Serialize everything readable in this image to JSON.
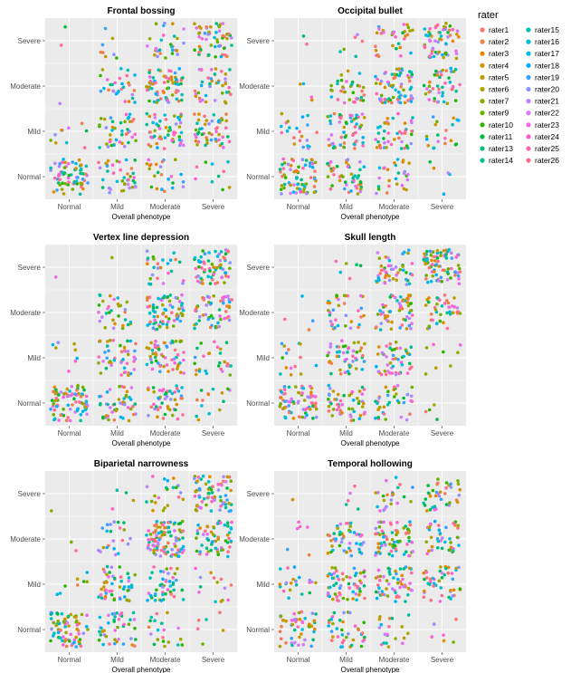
{
  "chart_data": {
    "type": "scatter",
    "jitter": true,
    "grid": true,
    "legend_placement": "right",
    "xlabel": "Overall phenotype",
    "x_categories": [
      "Normal",
      "Mild",
      "Moderate",
      "Severe"
    ],
    "y_categories": [
      "Normal",
      "Mild",
      "Moderate",
      "Severe"
    ],
    "legend": {
      "title": "rater",
      "entries": [
        {
          "name": "rater1",
          "color": "#F8766D"
        },
        {
          "name": "rater2",
          "color": "#EF7F49"
        },
        {
          "name": "rater3",
          "color": "#E38900"
        },
        {
          "name": "rater4",
          "color": "#D39200"
        },
        {
          "name": "rater5",
          "color": "#C09B00"
        },
        {
          "name": "rater6",
          "color": "#A9A400"
        },
        {
          "name": "rater7",
          "color": "#8EAB00"
        },
        {
          "name": "rater9",
          "color": "#6BB100"
        },
        {
          "name": "rater10",
          "color": "#2BB600"
        },
        {
          "name": "rater11",
          "color": "#00BA42"
        },
        {
          "name": "rater13",
          "color": "#00BD73"
        },
        {
          "name": "rater14",
          "color": "#00BF98"
        },
        {
          "name": "rater15",
          "color": "#00C0B8"
        },
        {
          "name": "rater16",
          "color": "#00BED5"
        },
        {
          "name": "rater17",
          "color": "#00B9EC"
        },
        {
          "name": "rater18",
          "color": "#00B0F6"
        },
        {
          "name": "rater19",
          "color": "#35A2FF"
        },
        {
          "name": "rater20",
          "color": "#8F91FF"
        },
        {
          "name": "rater21",
          "color": "#B983FF"
        },
        {
          "name": "rater22",
          "color": "#DA78F8"
        },
        {
          "name": "rater23",
          "color": "#F066E8"
        },
        {
          "name": "rater24",
          "color": "#FD61D1"
        },
        {
          "name": "rater25",
          "color": "#FF66B4"
        },
        {
          "name": "rater26",
          "color": "#FF6C91"
        }
      ]
    },
    "panels": [
      {
        "title": "Frontal bossing",
        "counts": [
          [
            68,
            40,
            24,
            10
          ],
          [
            10,
            42,
            55,
            50
          ],
          [
            1,
            30,
            72,
            42
          ],
          [
            2,
            8,
            28,
            56
          ]
        ]
      },
      {
        "title": "Occipital bullet",
        "counts": [
          [
            70,
            50,
            28,
            5
          ],
          [
            22,
            58,
            45,
            20
          ],
          [
            4,
            35,
            70,
            45
          ],
          [
            2,
            6,
            32,
            60
          ]
        ]
      },
      {
        "title": "Vertex line depression",
        "counts": [
          [
            80,
            48,
            50,
            15
          ],
          [
            8,
            46,
            58,
            28
          ],
          [
            0,
            32,
            72,
            55
          ],
          [
            1,
            1,
            26,
            65
          ]
        ]
      },
      {
        "title": "Skull length",
        "counts": [
          [
            70,
            52,
            38,
            4
          ],
          [
            15,
            50,
            50,
            8
          ],
          [
            4,
            38,
            60,
            42
          ],
          [
            0,
            6,
            48,
            80
          ]
        ]
      },
      {
        "title": "Biparietal narrowness",
        "counts": [
          [
            75,
            42,
            20,
            6
          ],
          [
            8,
            52,
            45,
            14
          ],
          [
            2,
            22,
            100,
            60
          ],
          [
            1,
            4,
            22,
            70
          ]
        ]
      },
      {
        "title": "Temporal hollowing",
        "counts": [
          [
            50,
            38,
            20,
            6
          ],
          [
            22,
            60,
            55,
            45
          ],
          [
            6,
            48,
            72,
            42
          ],
          [
            1,
            5,
            24,
            38
          ]
        ]
      }
    ]
  }
}
